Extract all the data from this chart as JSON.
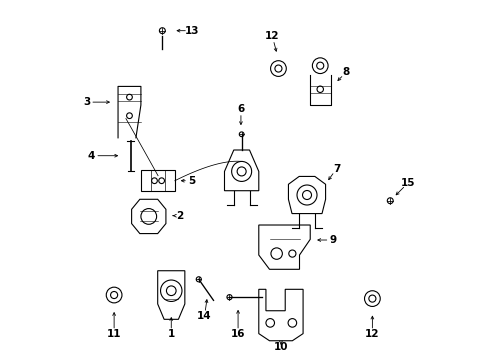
{
  "bg_color": "#ffffff",
  "line_color": "#000000",
  "fig_width": 4.89,
  "fig_height": 3.6,
  "dpi": 100,
  "labels": [
    [
      1,
      0.295,
      0.068,
      0.295,
      0.138
    ],
    [
      2,
      0.318,
      0.4,
      0.278,
      0.4
    ],
    [
      3,
      0.058,
      0.718,
      0.145,
      0.718
    ],
    [
      4,
      0.072,
      0.568,
      0.168,
      0.568
    ],
    [
      5,
      0.352,
      0.498,
      0.3,
      0.498
    ],
    [
      6,
      0.49,
      0.698,
      0.49,
      0.632
    ],
    [
      7,
      0.758,
      0.532,
      0.722,
      0.482
    ],
    [
      8,
      0.785,
      0.802,
      0.745,
      0.762
    ],
    [
      9,
      0.748,
      0.332,
      0.682,
      0.332
    ],
    [
      10,
      0.602,
      0.032,
      0.602,
      0.052
    ],
    [
      11,
      0.135,
      0.068,
      0.135,
      0.152
    ],
    [
      12,
      0.578,
      0.902,
      0.595,
      0.838
    ],
    [
      12,
      0.858,
      0.068,
      0.858,
      0.142
    ],
    [
      13,
      0.352,
      0.918,
      0.288,
      0.918
    ],
    [
      14,
      0.388,
      0.118,
      0.398,
      0.188
    ],
    [
      15,
      0.958,
      0.492,
      0.908,
      0.442
    ],
    [
      16,
      0.482,
      0.068,
      0.482,
      0.158
    ]
  ]
}
